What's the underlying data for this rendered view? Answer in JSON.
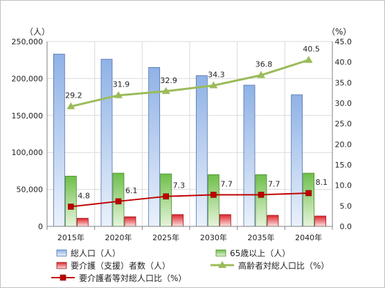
{
  "chart_data": {
    "type": "bar",
    "categories": [
      "2015年",
      "2020年",
      "2025年",
      "2030年",
      "2035年",
      "2040年"
    ],
    "left_axis": {
      "unit": "（人）",
      "ylim": [
        0,
        250000
      ],
      "ticks": [
        0,
        50000,
        100000,
        150000,
        200000,
        250000
      ],
      "tick_labels": [
        "0",
        "50,000",
        "100,000",
        "150,000",
        "200,000",
        "250,000"
      ]
    },
    "right_axis": {
      "unit": "（%）",
      "ylim": [
        0,
        45
      ],
      "ticks": [
        0,
        5,
        10,
        15,
        20,
        25,
        30,
        35,
        40,
        45
      ],
      "tick_labels": [
        "0.0",
        "5.0",
        "10.0",
        "15.0",
        "20.0",
        "25.0",
        "30.0",
        "35.0",
        "40.0",
        "45.0"
      ]
    },
    "bar_series": [
      {
        "name": "総人口（人）",
        "values": [
          233000,
          226000,
          215000,
          204000,
          191000,
          178000
        ],
        "color": "#7aa2dc"
      },
      {
        "name": "65歳以上（人）",
        "values": [
          68000,
          72000,
          71000,
          70000,
          70000,
          72000
        ],
        "color": "#7fc45a"
      },
      {
        "name": "要介護（支援）者数（人）",
        "values": [
          11000,
          13000,
          16000,
          16000,
          15000,
          14000
        ],
        "color": "#e0242c"
      }
    ],
    "line_series": [
      {
        "name": "高齢者対総人口比（%）",
        "values": [
          29.2,
          31.9,
          32.9,
          34.3,
          36.8,
          40.5
        ],
        "labels": [
          "29.2",
          "31.9",
          "32.9",
          "34.3",
          "36.8",
          "40.5"
        ],
        "color": "#9bbb59"
      },
      {
        "name": "要介護者等対総人口比（%）",
        "values": [
          4.8,
          6.1,
          7.3,
          7.7,
          7.7,
          8.1
        ],
        "labels": [
          "4.8",
          "6.1",
          "7.3",
          "7.7",
          "7.7",
          "8.1"
        ],
        "color": "#c00000"
      }
    ],
    "grid": true,
    "legend_position": "bottom"
  }
}
